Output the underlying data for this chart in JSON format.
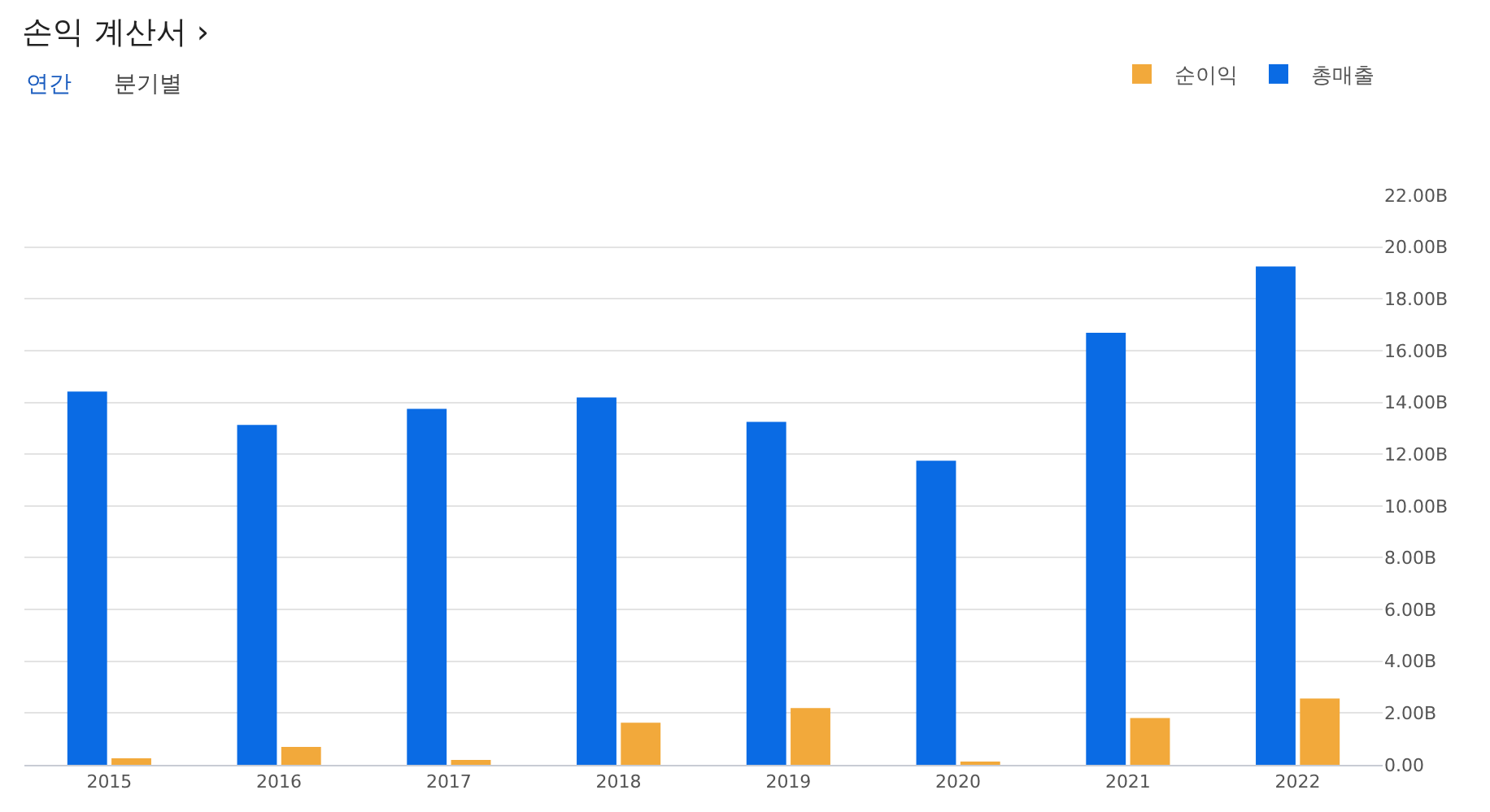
{
  "chart_data": {
    "type": "bar",
    "title": "손익 계산서 ›",
    "annotations": [
      "연간",
      "분기별"
    ],
    "categories": [
      "2015",
      "2016",
      "2017",
      "2018",
      "2019",
      "2020",
      "2021",
      "2022"
    ],
    "series": [
      {
        "name": "총매출",
        "color": "#0a6be4",
        "values": [
          14.42,
          13.13,
          13.75,
          14.19,
          13.25,
          11.75,
          16.69,
          19.25
        ]
      },
      {
        "name": "순이익",
        "color": "#f2a93b",
        "values": [
          0.25,
          0.69,
          0.19,
          1.63,
          2.19,
          0.12,
          1.81,
          2.56
        ]
      }
    ],
    "ylim": [
      0,
      22
    ],
    "yticks": [
      {
        "value": 0,
        "label": "0.00"
      },
      {
        "value": 2,
        "label": "2.00B"
      },
      {
        "value": 4,
        "label": "4.00B"
      },
      {
        "value": 6,
        "label": "6.00B"
      },
      {
        "value": 8,
        "label": "8.00B"
      },
      {
        "value": 10,
        "label": "10.00B"
      },
      {
        "value": 12,
        "label": "12.00B"
      },
      {
        "value": 14,
        "label": "14.00B"
      },
      {
        "value": 16,
        "label": "16.00B"
      },
      {
        "value": 18,
        "label": "18.00B"
      },
      {
        "value": 20,
        "label": "20.00B"
      },
      {
        "value": 22,
        "label": "22.00B"
      }
    ],
    "grid": "y",
    "legend": "top right"
  }
}
